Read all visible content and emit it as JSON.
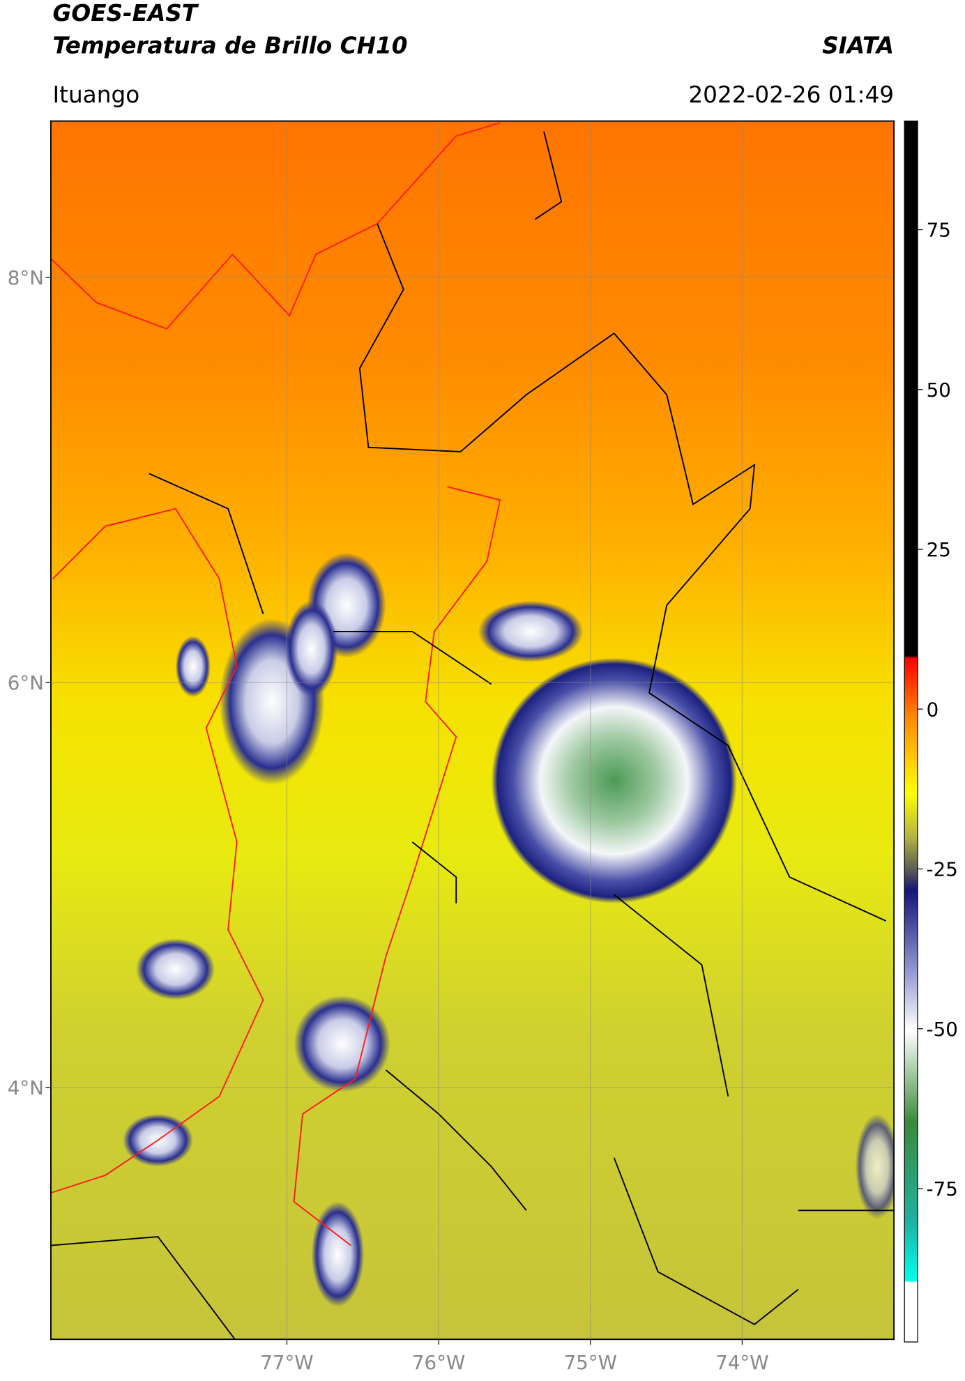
{
  "header": {
    "title": "GOES-EAST",
    "subtitle": "Temperatura de Brillo CH10",
    "source": "SIATA",
    "location": "Ituango",
    "datetime": "2022-02-26 01:49"
  },
  "map": {
    "latlim": [
      2.757,
      8.772
    ],
    "lonlim": [
      -78.555,
      -73.0
    ],
    "latticks": [
      {
        "value": 8,
        "label": "8°N"
      },
      {
        "value": 6,
        "label": "6°N"
      },
      {
        "value": 4,
        "label": "4°N"
      }
    ],
    "lonticks": [
      {
        "value": -77,
        "label": "77°W"
      },
      {
        "value": -76,
        "label": "76°W"
      },
      {
        "value": -75,
        "label": "75°W"
      },
      {
        "value": -74,
        "label": "74°W"
      }
    ],
    "grid": true
  },
  "colorbar": {
    "lim": [
      -99,
      92
    ],
    "ticks": [
      75,
      50,
      25,
      0,
      -25,
      -50,
      -75
    ]
  }
}
